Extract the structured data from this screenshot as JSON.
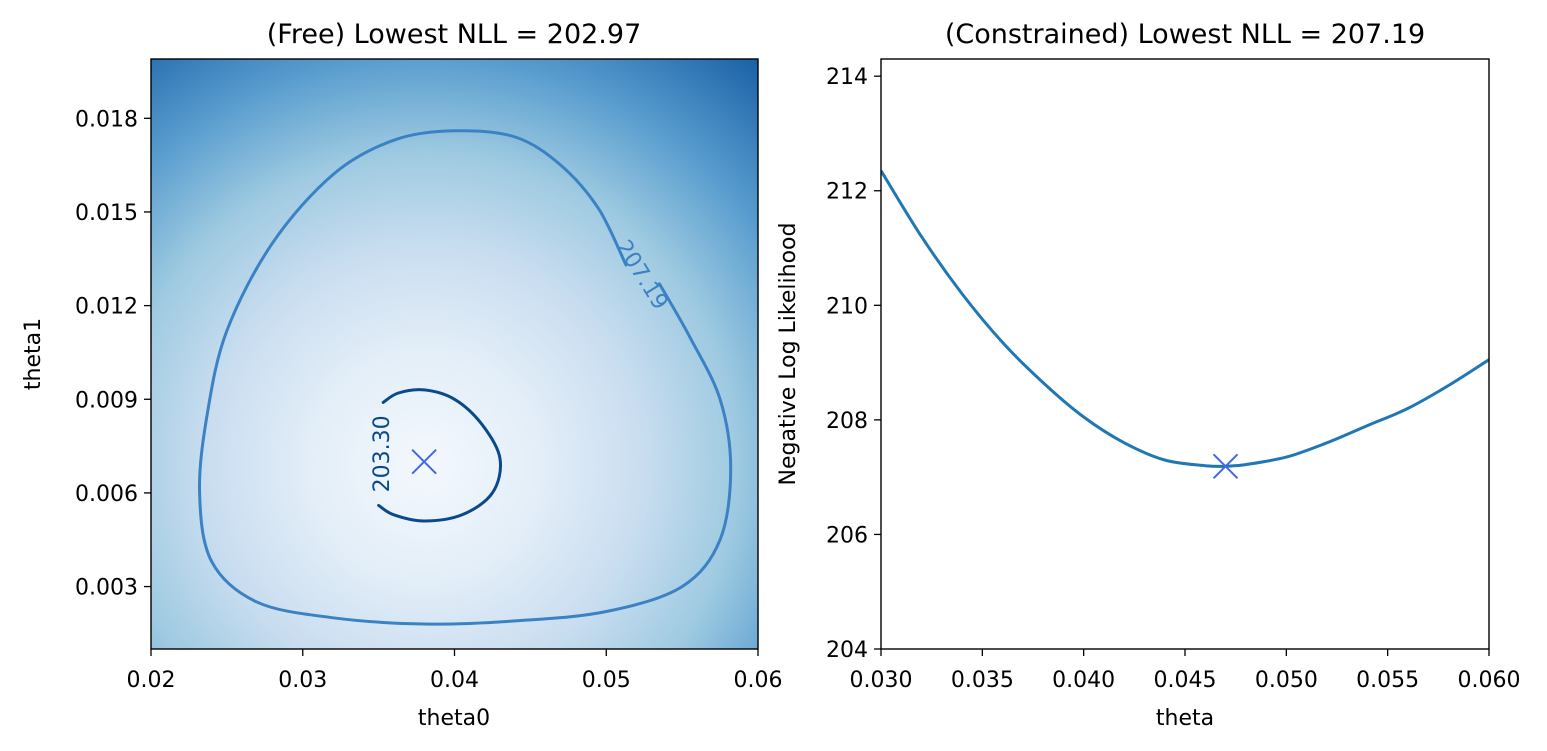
{
  "chart_data": [
    {
      "type": "contour",
      "title": "(Free) Lowest NLL = 202.97",
      "xlabel": "theta0",
      "ylabel": "theta1",
      "xlim": [
        0.02,
        0.06
      ],
      "ylim": [
        0.001,
        0.0199
      ],
      "xticks": [
        0.02,
        0.03,
        0.04,
        0.05,
        0.06
      ],
      "xtick_labels": [
        "0.02",
        "0.03",
        "0.04",
        "0.05",
        "0.06"
      ],
      "yticks": [
        0.003,
        0.006,
        0.009,
        0.012,
        0.015,
        0.018
      ],
      "ytick_labels": [
        "0.003",
        "0.006",
        "0.009",
        "0.012",
        "0.015",
        "0.018"
      ],
      "colormap": "Blues",
      "minimum": {
        "x": 0.038,
        "y": 0.007,
        "marker": "x",
        "color": "#4169e1"
      },
      "contour_levels": [
        {
          "label": "203.30",
          "color": "#0a4a8c",
          "points": [
            [
              0.0353,
              0.0089
            ],
            [
              0.0363,
              0.0092
            ],
            [
              0.038,
              0.0093
            ],
            [
              0.04,
              0.009
            ],
            [
              0.0418,
              0.0082
            ],
            [
              0.043,
              0.0071
            ],
            [
              0.0425,
              0.006
            ],
            [
              0.0405,
              0.0053
            ],
            [
              0.038,
              0.0051
            ],
            [
              0.036,
              0.0053
            ],
            [
              0.035,
              0.0056
            ]
          ]
        },
        {
          "label": "207.19",
          "color": "#3b82c4",
          "points": [
            [
              0.0513,
              0.0133
            ],
            [
              0.0495,
              0.0151
            ],
            [
              0.047,
              0.0165
            ],
            [
              0.044,
              0.0174
            ],
            [
              0.04,
              0.0176
            ],
            [
              0.036,
              0.0173
            ],
            [
              0.032,
              0.0162
            ],
            [
              0.028,
              0.014
            ],
            [
              0.025,
              0.0112
            ],
            [
              0.0237,
              0.0085
            ],
            [
              0.0232,
              0.006
            ],
            [
              0.024,
              0.0038
            ],
            [
              0.027,
              0.0025
            ],
            [
              0.032,
              0.002
            ],
            [
              0.038,
              0.0018
            ],
            [
              0.044,
              0.0019
            ],
            [
              0.05,
              0.0022
            ],
            [
              0.055,
              0.003
            ],
            [
              0.0575,
              0.0045
            ],
            [
              0.0582,
              0.0068
            ],
            [
              0.0575,
              0.009
            ],
            [
              0.0555,
              0.011
            ],
            [
              0.0535,
              0.0127
            ]
          ]
        }
      ]
    },
    {
      "type": "line",
      "title": "(Constrained) Lowest NLL = 207.19",
      "xlabel": "theta",
      "ylabel": "Negative Log Likelihood",
      "xlim": [
        0.03,
        0.06
      ],
      "ylim": [
        204,
        214.3
      ],
      "xticks": [
        0.03,
        0.035,
        0.04,
        0.045,
        0.05,
        0.055,
        0.06
      ],
      "xtick_labels": [
        "0.030",
        "0.035",
        "0.040",
        "0.045",
        "0.050",
        "0.055",
        "0.060"
      ],
      "yticks": [
        204,
        206,
        208,
        210,
        212,
        214
      ],
      "ytick_labels": [
        "204",
        "206",
        "208",
        "210",
        "212",
        "214"
      ],
      "line_color": "#1f77b4",
      "x": [
        0.03,
        0.032,
        0.034,
        0.036,
        0.038,
        0.04,
        0.042,
        0.044,
        0.046,
        0.047,
        0.048,
        0.05,
        0.052,
        0.054,
        0.056,
        0.058,
        0.06
      ],
      "y": [
        212.35,
        211.2,
        210.2,
        209.35,
        208.65,
        208.05,
        207.6,
        207.3,
        207.2,
        207.19,
        207.22,
        207.35,
        207.6,
        207.9,
        208.2,
        208.6,
        209.05
      ],
      "minimum": {
        "x": 0.047,
        "y": 207.19,
        "marker": "x",
        "color": "#4169e1"
      }
    }
  ]
}
